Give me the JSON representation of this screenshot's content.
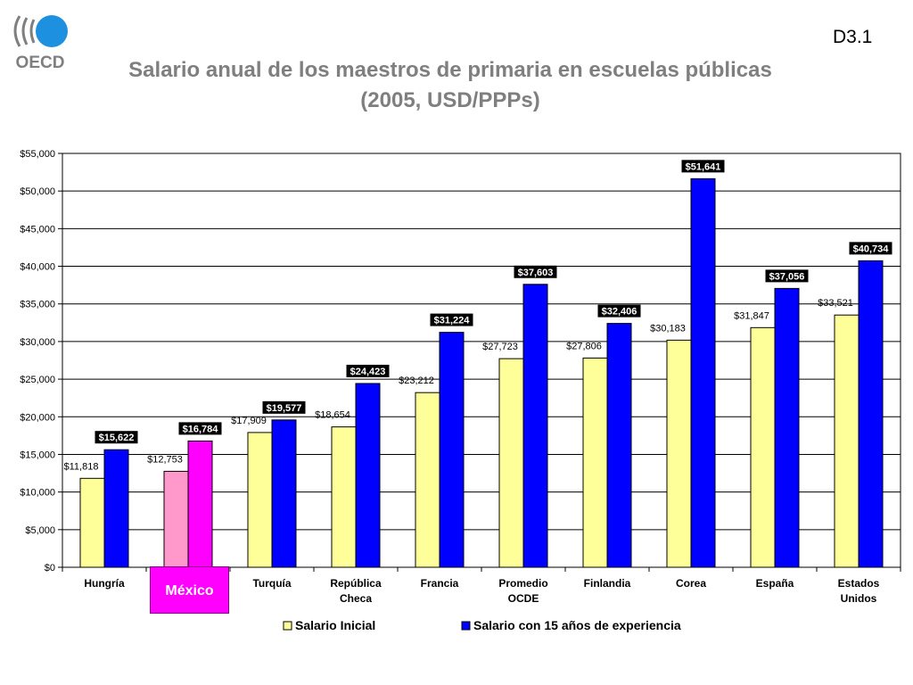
{
  "slide_code": "D3.1",
  "logo_text": "OECD",
  "chart_data": {
    "type": "bar",
    "title": "Salario anual de los maestros de primaria en escuelas públicas (2005, USD/PPPs)",
    "categories": [
      "Hungría",
      "México",
      "Turquía",
      "República Checa",
      "Francia",
      "Promedio OCDE",
      "Finlandia",
      "Corea",
      "España",
      "Estados Unidos"
    ],
    "series": [
      {
        "name": "Salario Inicial",
        "values": [
          11818,
          12753,
          17909,
          18654,
          23212,
          27723,
          27806,
          30183,
          31847,
          33521
        ]
      },
      {
        "name": "Salario con 15 años de experiencia",
        "values": [
          15622,
          16784,
          19577,
          24423,
          31224,
          37603,
          32406,
          51641,
          37056,
          40734
        ]
      }
    ],
    "value_labels": [
      [
        "$11,818",
        "$12,753",
        "$17,909",
        "$18,654",
        "$23,212",
        "$27,723",
        "$27,806",
        "$30,183",
        "$31,847",
        "$33,521"
      ],
      [
        "$15,622",
        "$16,784",
        "$19,577",
        "$24,423",
        "$31,224",
        "$37,603",
        "$32,406",
        "$51,641",
        "$37,056",
        "$40,734"
      ]
    ],
    "yticks": [
      "$0",
      "$5,000",
      "$10,000",
      "$15,000",
      "$20,000",
      "$25,000",
      "$30,000",
      "$35,000",
      "$40,000",
      "$45,000",
      "$50,000",
      "$55,000"
    ],
    "ylim": [
      0,
      55000
    ],
    "grid": true,
    "legend_position": "bottom",
    "colors": {
      "initial": "#ffff99",
      "experienced": "#0000ff",
      "highlight_initial": "#ff99cc",
      "highlight_experienced": "#ff00ff"
    },
    "highlight_category": "México"
  }
}
